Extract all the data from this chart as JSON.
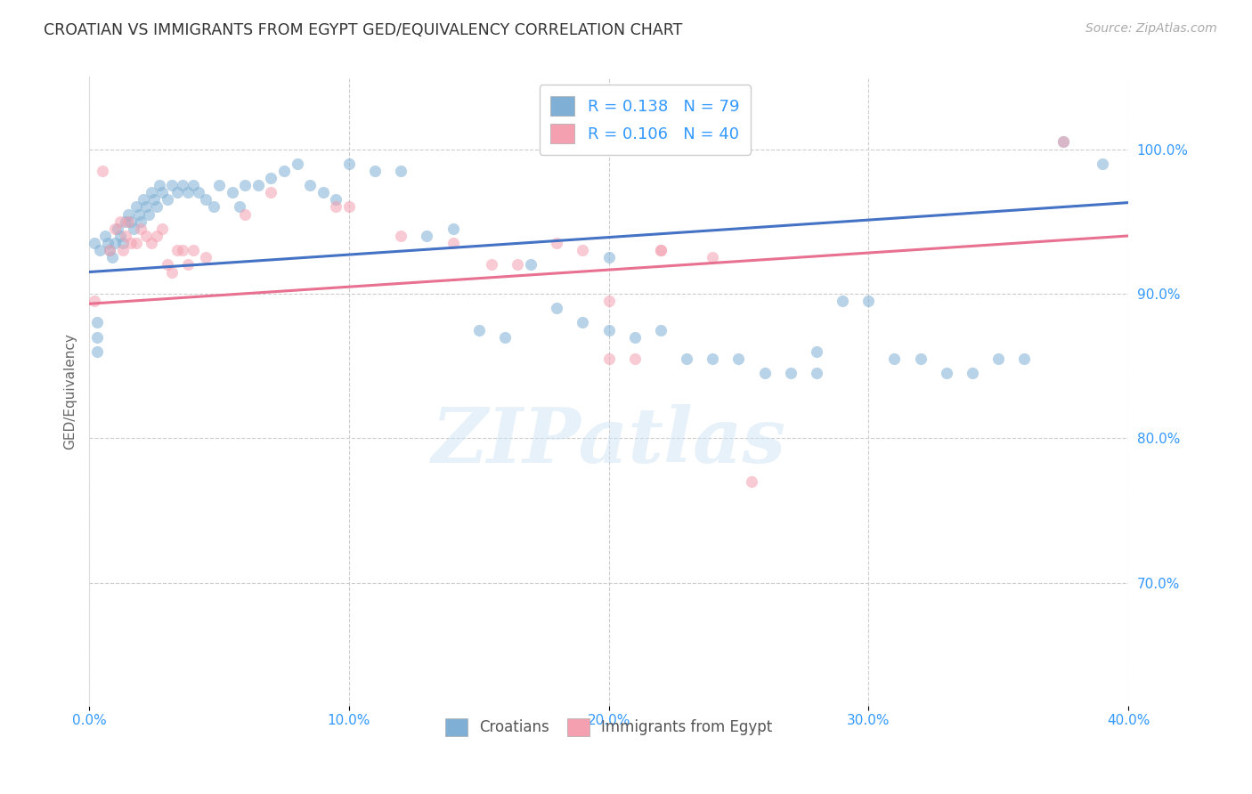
{
  "title": "CROATIAN VS IMMIGRANTS FROM EGYPT GED/EQUIVALENCY CORRELATION CHART",
  "source": "Source: ZipAtlas.com",
  "ylabel": "GED/Equivalency",
  "watermark": "ZIPatlas",
  "legend_entries": [
    {
      "label": "R = 0.138   N = 79",
      "color": "#a8c4e0"
    },
    {
      "label": "R = 0.106   N = 40",
      "color": "#f4a8b8"
    }
  ],
  "bottom_legend": [
    "Croatians",
    "Immigrants from Egypt"
  ],
  "x_ticks": [
    "0.0%",
    "10.0%",
    "20.0%",
    "30.0%",
    "40.0%"
  ],
  "x_tick_vals": [
    0.0,
    0.1,
    0.2,
    0.3,
    0.4
  ],
  "y_ticks_right": [
    "70.0%",
    "80.0%",
    "90.0%",
    "100.0%"
  ],
  "y_tick_right_vals": [
    0.7,
    0.8,
    0.9,
    1.0
  ],
  "xlim": [
    0.0,
    0.4
  ],
  "ylim": [
    0.615,
    1.05
  ],
  "croatian_color": "#7fafd4",
  "egypt_color": "#f4a0b0",
  "trendline_croatian_color": "#4472c4",
  "trendline_egypt_color": "#e87090",
  "scatter_alpha": 0.55,
  "scatter_size": 90,
  "background_color": "#ffffff",
  "grid_color": "#cccccc",
  "title_color": "#333333",
  "axis_color": "#3399ff",
  "croatian_x": [
    0.002,
    0.004,
    0.006,
    0.007,
    0.008,
    0.009,
    0.01,
    0.011,
    0.012,
    0.013,
    0.014,
    0.015,
    0.016,
    0.017,
    0.018,
    0.019,
    0.02,
    0.021,
    0.022,
    0.023,
    0.024,
    0.025,
    0.026,
    0.027,
    0.028,
    0.03,
    0.032,
    0.034,
    0.036,
    0.038,
    0.04,
    0.042,
    0.045,
    0.048,
    0.05,
    0.055,
    0.058,
    0.06,
    0.065,
    0.07,
    0.075,
    0.08,
    0.085,
    0.09,
    0.095,
    0.1,
    0.11,
    0.12,
    0.13,
    0.14,
    0.15,
    0.16,
    0.17,
    0.18,
    0.19,
    0.2,
    0.21,
    0.22,
    0.23,
    0.24,
    0.25,
    0.26,
    0.27,
    0.28,
    0.29,
    0.3,
    0.31,
    0.32,
    0.33,
    0.34,
    0.35,
    0.36,
    0.003,
    0.003,
    0.003,
    0.2,
    0.28,
    0.375,
    0.39
  ],
  "croatian_y": [
    0.935,
    0.93,
    0.94,
    0.935,
    0.93,
    0.925,
    0.935,
    0.945,
    0.94,
    0.935,
    0.95,
    0.955,
    0.95,
    0.945,
    0.96,
    0.955,
    0.95,
    0.965,
    0.96,
    0.955,
    0.97,
    0.965,
    0.96,
    0.975,
    0.97,
    0.965,
    0.975,
    0.97,
    0.975,
    0.97,
    0.975,
    0.97,
    0.965,
    0.96,
    0.975,
    0.97,
    0.96,
    0.975,
    0.975,
    0.98,
    0.985,
    0.99,
    0.975,
    0.97,
    0.965,
    0.99,
    0.985,
    0.985,
    0.94,
    0.945,
    0.875,
    0.87,
    0.92,
    0.89,
    0.88,
    0.875,
    0.87,
    0.875,
    0.855,
    0.855,
    0.855,
    0.845,
    0.845,
    0.845,
    0.895,
    0.895,
    0.855,
    0.855,
    0.845,
    0.845,
    0.855,
    0.855,
    0.88,
    0.87,
    0.86,
    0.925,
    0.86,
    1.005,
    0.99
  ],
  "egypt_x": [
    0.002,
    0.005,
    0.008,
    0.01,
    0.012,
    0.013,
    0.014,
    0.015,
    0.016,
    0.018,
    0.02,
    0.022,
    0.024,
    0.026,
    0.028,
    0.03,
    0.032,
    0.034,
    0.036,
    0.038,
    0.04,
    0.045,
    0.06,
    0.07,
    0.095,
    0.1,
    0.12,
    0.14,
    0.155,
    0.165,
    0.18,
    0.19,
    0.2,
    0.2,
    0.21,
    0.22,
    0.22,
    0.24,
    0.255,
    0.375
  ],
  "egypt_y": [
    0.895,
    0.985,
    0.93,
    0.945,
    0.95,
    0.93,
    0.94,
    0.95,
    0.935,
    0.935,
    0.945,
    0.94,
    0.935,
    0.94,
    0.945,
    0.92,
    0.915,
    0.93,
    0.93,
    0.92,
    0.93,
    0.925,
    0.955,
    0.97,
    0.96,
    0.96,
    0.94,
    0.935,
    0.92,
    0.92,
    0.935,
    0.93,
    0.895,
    0.855,
    0.855,
    0.93,
    0.93,
    0.925,
    0.77,
    1.005
  ]
}
